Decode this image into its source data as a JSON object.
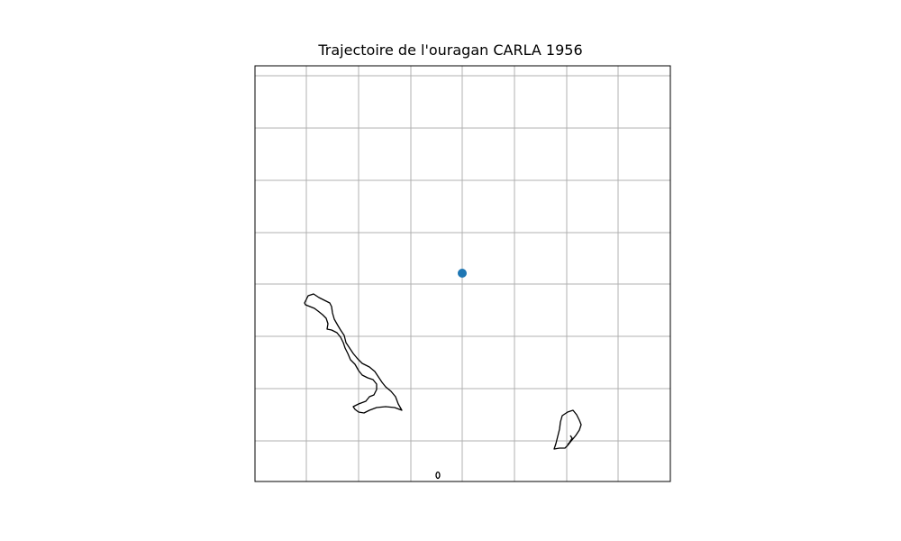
{
  "figure": {
    "title": "Trajectoire de l'ouragan CARLA 1956"
  },
  "map": {
    "gridlines": true,
    "gridline_color": "#b0b0b0",
    "coastline_color": "#000000",
    "track_marker_color": "#1f77b4",
    "frame_color": "#000000",
    "track_points": 1
  }
}
